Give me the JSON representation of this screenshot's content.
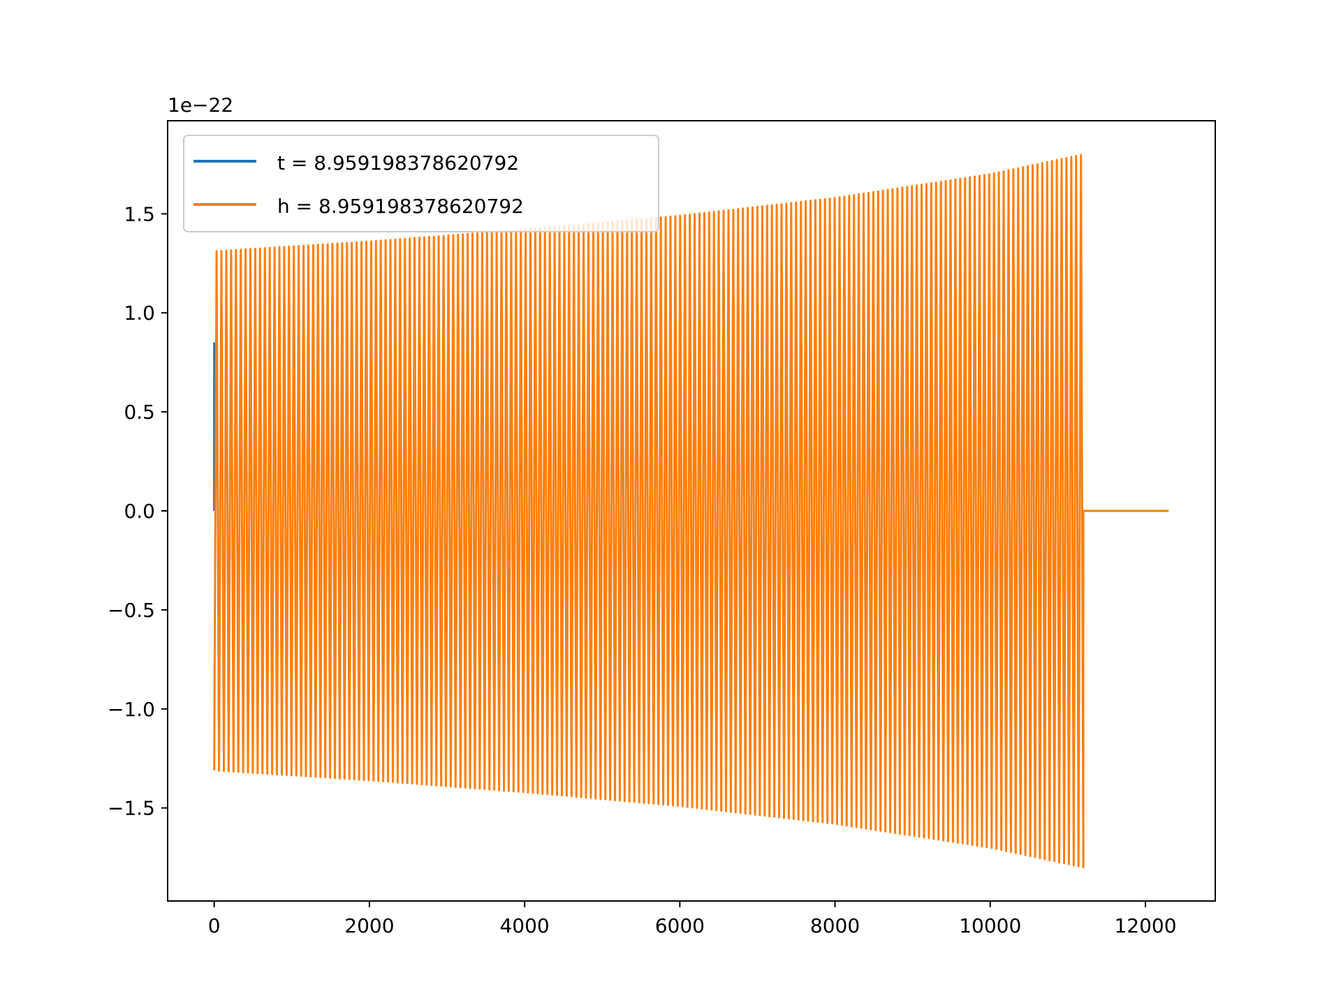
{
  "chart_data": {
    "type": "line",
    "title": "",
    "xlabel": "",
    "ylabel": "",
    "xlim": [
      -600,
      12900
    ],
    "ylim": [
      -1.97,
      1.97
    ],
    "y_scale_note": "1e−22",
    "grid": false,
    "legend_position": "upper left",
    "x_ticks": [
      0,
      2000,
      4000,
      6000,
      8000,
      10000,
      12000
    ],
    "x_tick_labels": [
      "0",
      "2000",
      "4000",
      "6000",
      "8000",
      "10000",
      "12000"
    ],
    "y_ticks": [
      -1.5,
      -1.0,
      -0.5,
      0.0,
      0.5,
      1.0,
      1.5
    ],
    "y_tick_labels": [
      "−1.5",
      "−1.0",
      "−0.5",
      "0.0",
      "0.5",
      "1.0",
      "1.5"
    ],
    "series": [
      {
        "name": "t = 8.959198378620792",
        "color": "#1f77b4",
        "x": [
          0,
          0,
          0
        ],
        "y": [
          0.0,
          0.85,
          0.0
        ],
        "description": "short transient near x=0"
      },
      {
        "name": "h = 8.959198378620792",
        "color": "#ff7f0e",
        "kind": "oscillation",
        "x_start": 0,
        "x_end": 11200,
        "cycles": 180,
        "envelope_x": [
          0,
          2000,
          4000,
          6000,
          8000,
          10000,
          11200
        ],
        "envelope_amplitude": [
          1.31,
          1.36,
          1.42,
          1.49,
          1.58,
          1.7,
          1.8
        ],
        "tail_x": [
          11200,
          12300
        ],
        "tail_y": [
          0.0,
          0.0
        ]
      }
    ]
  }
}
